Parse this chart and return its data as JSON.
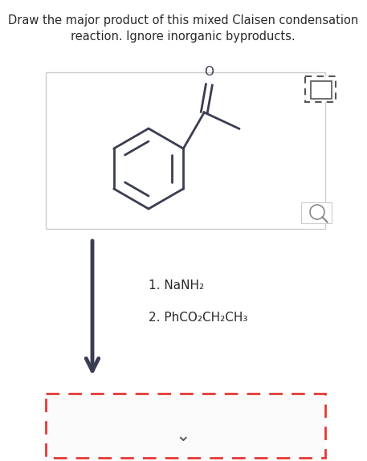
{
  "title_line1": "Draw the major product of this mixed Claisen condensation",
  "title_line2": "reaction. Ignore inorganic byproducts.",
  "title_fontsize": 10.5,
  "title_color": "#2a2a2a",
  "background_color": "#ffffff",
  "step1_text": "1. NaNH₂",
  "step2_text": "2. PhCO₂CH₂CH₃",
  "reagent_fontsize": 11,
  "reagent_color": "#2a2a2a",
  "molecule_color": "#3a3d52",
  "dashed_box_color": "#e53935",
  "arrow_color": "#3a3d52",
  "icon_color": "#555555",
  "mag_color": "#888888"
}
